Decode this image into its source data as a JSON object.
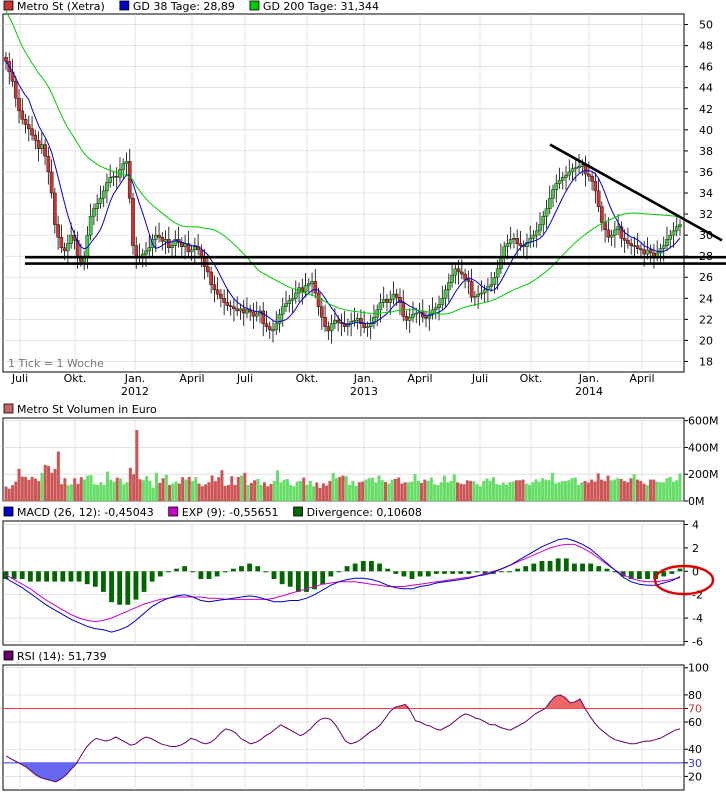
{
  "price_panel": {
    "legend": [
      {
        "label": "Metro St (Xetra)",
        "color": "#cc3333"
      },
      {
        "label": "GD 38 Tage: 28,89",
        "color": "#0000cc"
      },
      {
        "label": "GD 200 Tage: 31,344",
        "color": "#00cc00"
      }
    ],
    "tick_note": "1 Tick = 1 Woche",
    "y_ticks": [
      18,
      20,
      22,
      24,
      26,
      28,
      30,
      32,
      34,
      36,
      38,
      40,
      42,
      44,
      46,
      48,
      50
    ],
    "x_labels": [
      {
        "label": "Juli",
        "year": ""
      },
      {
        "label": "Okt.",
        "year": ""
      },
      {
        "label": "Jan.",
        "year": "2012"
      },
      {
        "label": "April",
        "year": ""
      },
      {
        "label": "Juli",
        "year": ""
      },
      {
        "label": "Okt.",
        "year": ""
      },
      {
        "label": "Jan.",
        "year": "2013"
      },
      {
        "label": "April",
        "year": ""
      },
      {
        "label": "Juli",
        "year": ""
      },
      {
        "label": "Okt.",
        "year": ""
      },
      {
        "label": "Jan.",
        "year": "2014"
      },
      {
        "label": "April",
        "year": ""
      }
    ]
  },
  "volume_panel": {
    "legend": [
      {
        "label": "Metro St Volumen in Euro",
        "color": "#cc6666"
      }
    ],
    "y_ticks": [
      "0M",
      "200M",
      "400M",
      "600M"
    ]
  },
  "macd_panel": {
    "legend": [
      {
        "label": "MACD (26, 12): -0,45043",
        "color": "#0000cc"
      },
      {
        "label": "EXP (9): -0,55651",
        "color": "#cc00cc"
      },
      {
        "label": "Divergence: 0,10608",
        "color": "#006600"
      }
    ],
    "y_ticks": [
      "-6",
      "-4",
      "-2",
      "0",
      "2",
      "4"
    ]
  },
  "rsi_panel": {
    "legend": [
      {
        "label": "RSI (14): 51,739",
        "color": "#660066"
      }
    ],
    "y_ticks": [
      "20",
      "30",
      "40",
      "60",
      "70",
      "80",
      "100"
    ]
  },
  "colors": {
    "up": "#44cc44",
    "down": "#cc3333",
    "ma38": "#0000cc",
    "ma200": "#00cc00",
    "macd": "#0000cc",
    "exp": "#cc00cc",
    "div": "#006600",
    "rsi": "#660066",
    "over": "#ff3333",
    "under": "#3333ff",
    "grid": "#d0d0d0"
  },
  "chart_data": [
    {
      "type": "candlestick",
      "title": "Metro St (Xetra)",
      "interval": "weekly",
      "ylim": [
        17,
        51
      ],
      "series": [
        {
          "name": "Metro St (Xetra)",
          "close": [
            46.5,
            45.5,
            44.6,
            43.0,
            41.8,
            41.0,
            40.5,
            40.1,
            39.5,
            39.0,
            38.2,
            38.6,
            37.5,
            36.0,
            34.0,
            31.0,
            29.8,
            28.8,
            28.5,
            29.2,
            30.0,
            29.5,
            28.0,
            27.5,
            28.0,
            30.0,
            31.8,
            32.5,
            33.0,
            33.5,
            34.2,
            35.0,
            35.5,
            35.6,
            35.5,
            36.2,
            36.8,
            37.0,
            33.5,
            29.0,
            28.0,
            27.8,
            28.2,
            28.5,
            28.8,
            29.6,
            30.0,
            29.8,
            29.4,
            29.6,
            28.8,
            29.0,
            29.6,
            29.3,
            28.9,
            29.2,
            28.4,
            28.6,
            28.9,
            28.6,
            27.8,
            27.0,
            26.5,
            25.3,
            24.8,
            24.4,
            24.0,
            23.6,
            23.3,
            23.2,
            23.0,
            22.8,
            23.0,
            22.6,
            22.9,
            22.7,
            22.3,
            22.5,
            22.8,
            21.6,
            21.3,
            21.0,
            21.0,
            21.6,
            22.5,
            23.2,
            23.5,
            23.8,
            24.0,
            24.5,
            25.0,
            24.6,
            25.2,
            25.4,
            25.6,
            24.5,
            23.2,
            22.2,
            21.3,
            20.9,
            21.6,
            21.9,
            21.7,
            21.6,
            21.3,
            21.6,
            21.8,
            21.9,
            22.1,
            21.6,
            21.2,
            21.3,
            21.6,
            22.2,
            22.9,
            23.6,
            23.9,
            23.6,
            23.9,
            24.4,
            24.1,
            23.6,
            22.3,
            21.9,
            22.2,
            22.5,
            22.6,
            22.7,
            22.2,
            22.1,
            22.5,
            22.9,
            23.1,
            23.4,
            24.0,
            24.8,
            25.5,
            26.2,
            26.8,
            26.5,
            26.3,
            25.8,
            25.6,
            24.1,
            24.2,
            24.4,
            24.5,
            24.8,
            25.1,
            25.3,
            26.0,
            26.8,
            28.0,
            28.9,
            29.2,
            29.6,
            29.7,
            29.2,
            29.0,
            28.9,
            29.3,
            29.7,
            30.0,
            30.4,
            31.0,
            31.8,
            32.5,
            33.5,
            34.3,
            34.9,
            35.2,
            35.5,
            35.7,
            36.0,
            36.3,
            36.4,
            36.5,
            36.7,
            35.8,
            35.6,
            35.1,
            34.2,
            32.7,
            31.2,
            30.5,
            29.8,
            30.0,
            30.5,
            30.8,
            29.7,
            29.5,
            29.2,
            29.0,
            29.0,
            28.7,
            28.6,
            28.2,
            28.6,
            28.3,
            28.0,
            28.3,
            28.7,
            29.0,
            29.6,
            30.0,
            30.4,
            30.8,
            31.0
          ]
        },
        {
          "name": "GD 38 Tage",
          "last": 28.89
        },
        {
          "name": "GD 200 Tage",
          "last": 31.344
        }
      ],
      "annotations": [
        "resistance trendline from ~38.5 (Nov 2013) falling to ~29 (May 2014)",
        "horizontal support lines at ~27.8 and ~27.3"
      ],
      "x_tick_labels": [
        "Juli",
        "Okt.",
        "Jan. 2012",
        "April",
        "Juli",
        "Okt.",
        "Jan. 2013",
        "April",
        "Juli",
        "Okt.",
        "Jan. 2014",
        "April"
      ]
    },
    {
      "type": "bar",
      "title": "Metro St Volumen in Euro",
      "ylim": [
        0,
        600
      ],
      "unit": "M",
      "values": [
        108,
        92,
        118,
        145,
        240,
        182,
        180,
        158,
        180,
        168,
        148,
        210,
        270,
        262,
        210,
        240,
        370,
        125,
        170,
        118,
        125,
        170,
        128,
        178,
        160,
        190,
        192,
        125,
        120,
        140,
        120,
        220,
        160,
        145,
        175,
        168,
        125,
        140,
        248,
        200,
        530,
        162,
        155,
        185,
        150,
        100,
        210,
        135,
        170,
        195,
        120,
        130,
        145,
        130,
        178,
        160,
        180,
        150,
        178,
        130,
        110,
        125,
        140,
        190,
        148,
        178,
        230,
        112,
        120,
        185,
        120,
        180,
        190,
        210,
        120,
        135,
        155,
        165,
        120,
        140,
        110,
        128,
        150,
        230,
        140,
        158,
        164,
        120,
        110,
        145,
        150,
        175,
        120,
        150,
        110,
        138,
        98,
        132,
        115,
        150,
        210,
        170,
        180,
        190,
        185,
        120,
        150,
        112,
        140,
        145,
        160,
        170,
        175,
        140,
        190,
        155,
        142,
        130,
        160,
        165,
        175,
        130,
        140,
        140,
        145,
        200,
        150,
        135,
        160,
        150,
        175,
        125,
        120,
        140,
        190,
        140,
        150,
        198,
        140,
        130,
        125,
        155,
        150,
        148,
        126,
        110,
        150,
        168,
        150,
        178,
        126,
        120,
        138,
        120,
        140,
        145,
        155,
        155,
        160,
        130,
        120,
        140,
        162,
        145,
        170,
        160,
        155,
        210,
        130,
        140,
        148,
        150,
        155,
        170,
        175,
        120,
        140,
        150,
        138,
        160,
        145,
        206,
        160,
        150,
        190,
        154,
        160,
        170,
        165,
        150,
        140,
        170,
        200,
        160,
        150,
        130,
        120,
        160,
        160,
        145,
        140,
        140,
        170,
        180,
        145,
        155,
        205
      ]
    },
    {
      "type": "line",
      "title": "MACD (26, 12)",
      "ylim": [
        -6,
        4
      ],
      "series": [
        {
          "name": "MACD (26, 12)",
          "last": -0.45043,
          "values": [
            -0.6,
            -1.0,
            -1.4,
            -1.9,
            -2.4,
            -2.9,
            -3.3,
            -3.7,
            -4.1,
            -4.4,
            -4.7,
            -4.9,
            -5.0,
            -5.2,
            -5.0,
            -4.7,
            -4.2,
            -3.6,
            -3.0,
            -2.6,
            -2.3,
            -2.1,
            -2.0,
            -2.2,
            -2.5,
            -2.6,
            -2.5,
            -2.4,
            -2.3,
            -2.2,
            -2.1,
            -2.2,
            -2.4,
            -2.6,
            -2.6,
            -2.5,
            -2.5,
            -2.3,
            -2.0,
            -1.6,
            -1.2,
            -0.9,
            -0.7,
            -0.6,
            -0.6,
            -0.7,
            -0.9,
            -1.2,
            -1.4,
            -1.5,
            -1.5,
            -1.3,
            -1.2,
            -1.0,
            -0.9,
            -0.8,
            -0.7,
            -0.6,
            -0.4,
            -0.3,
            -0.1,
            0.2,
            0.5,
            0.9,
            1.3,
            1.7,
            2.1,
            2.4,
            2.7,
            2.8,
            2.6,
            2.3,
            1.9,
            1.3,
            0.7,
            0.1,
            -0.5,
            -0.9,
            -1.1,
            -1.2,
            -1.2,
            -1.0,
            -0.8,
            -0.45
          ]
        },
        {
          "name": "EXP (9)",
          "last": -0.55651,
          "values": [
            -0.3,
            -0.7,
            -1.1,
            -1.5,
            -2.0,
            -2.5,
            -2.9,
            -3.3,
            -3.7,
            -4.0,
            -4.2,
            -4.3,
            -4.2,
            -4.0,
            -3.7,
            -3.4,
            -3.1,
            -2.8,
            -2.6,
            -2.4,
            -2.3,
            -2.2,
            -2.2,
            -2.2,
            -2.2,
            -2.3,
            -2.3,
            -2.4,
            -2.4,
            -2.4,
            -2.4,
            -2.4,
            -2.4,
            -2.3,
            -2.1,
            -1.9,
            -1.7,
            -1.5,
            -1.3,
            -1.1,
            -1.0,
            -0.9,
            -0.9,
            -0.9,
            -1.0,
            -1.1,
            -1.2,
            -1.3,
            -1.3,
            -1.3,
            -1.2,
            -1.1,
            -1.0,
            -0.9,
            -0.8,
            -0.7,
            -0.6,
            -0.5,
            -0.4,
            -0.2,
            0.0,
            0.2,
            0.5,
            0.8,
            1.1,
            1.4,
            1.7,
            2.0,
            2.2,
            2.3,
            2.3,
            2.0,
            1.6,
            1.1,
            0.6,
            0.1,
            -0.3,
            -0.6,
            -0.8,
            -0.9,
            -0.9,
            -0.8,
            -0.7,
            -0.55651
          ]
        },
        {
          "name": "Divergence",
          "last": 0.10608
        }
      ]
    },
    {
      "type": "line",
      "title": "RSI (14)",
      "ylim": [
        10,
        100
      ],
      "reference_lines": [
        70,
        30
      ],
      "series": [
        {
          "name": "RSI (14)",
          "last": 51.739,
          "values": [
            35,
            33,
            31,
            29,
            27,
            24,
            21,
            19,
            18,
            17,
            16,
            18,
            21,
            25,
            29,
            35,
            41,
            45,
            48,
            47,
            46,
            47,
            49,
            47,
            45,
            43,
            44,
            47,
            49,
            48,
            46,
            44,
            43,
            42,
            42,
            43,
            45,
            48,
            47,
            45,
            44,
            45,
            48,
            52,
            55,
            54,
            52,
            48,
            46,
            44,
            45,
            47,
            50,
            52,
            55,
            58,
            56,
            54,
            52,
            50,
            52,
            55,
            59,
            62,
            63,
            62,
            58,
            52,
            46,
            44,
            45,
            47,
            50,
            53,
            55,
            58,
            63,
            68,
            71,
            72,
            73,
            68,
            61,
            60,
            58,
            57,
            55,
            54,
            56,
            58,
            61,
            64,
            66,
            65,
            63,
            62,
            60,
            58,
            58,
            56,
            55,
            54,
            56,
            58,
            60,
            63,
            66,
            68,
            70,
            75,
            79,
            80,
            78,
            74,
            75,
            77,
            70,
            64,
            59,
            55,
            52,
            49,
            47,
            46,
            45,
            44,
            44,
            45,
            46,
            46,
            47,
            48,
            50,
            52,
            54,
            55
          ]
        }
      ]
    }
  ]
}
